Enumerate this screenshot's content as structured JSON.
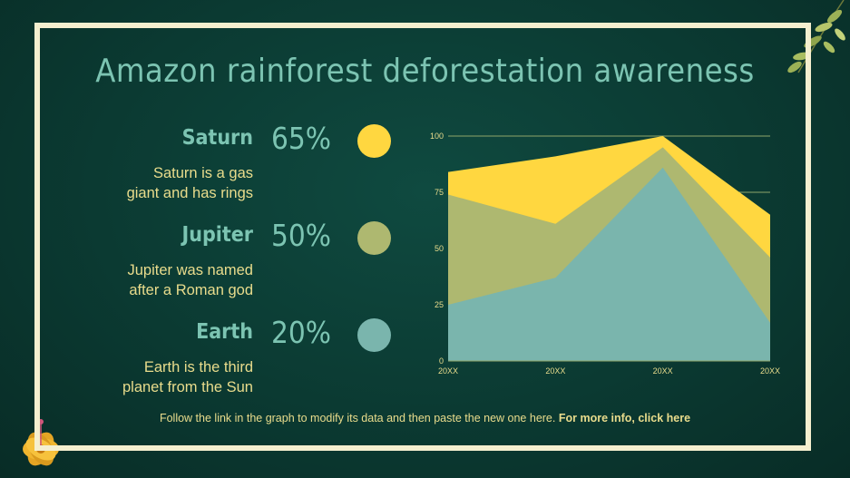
{
  "slide": {
    "title": "Amazon rainforest deforestation awareness",
    "footer_text": "Follow the link in the graph to modify its data and then paste the new one here.",
    "footer_link": "For more info, click here"
  },
  "items": [
    {
      "name": "Saturn",
      "percent": "65%",
      "description_line1": "Saturn is a gas",
      "description_line2": "giant and has rings",
      "color": "#ffd740"
    },
    {
      "name": "Jupiter",
      "percent": "50%",
      "description_line1": "Jupiter was named",
      "description_line2": "after a Roman god",
      "color": "#aeb870"
    },
    {
      "name": "Earth",
      "percent": "20%",
      "description_line1": "Earth is the third",
      "description_line2": "planet from the Sun",
      "color": "#7ab5ad"
    }
  ],
  "chart_data": {
    "type": "area",
    "categories": [
      "20XX",
      "20XX",
      "20XX",
      "20XX"
    ],
    "yticks": [
      "0",
      "25",
      "50",
      "75",
      "100"
    ],
    "ylim": [
      0,
      100
    ],
    "grid": true,
    "series": [
      {
        "values": [
          84,
          91,
          100,
          65
        ],
        "color": "#ffd740"
      },
      {
        "values": [
          74,
          61,
          95,
          46
        ],
        "color": "#aeb870"
      },
      {
        "values": [
          25,
          37,
          86,
          17
        ],
        "color": "#7ab5ad"
      }
    ]
  }
}
